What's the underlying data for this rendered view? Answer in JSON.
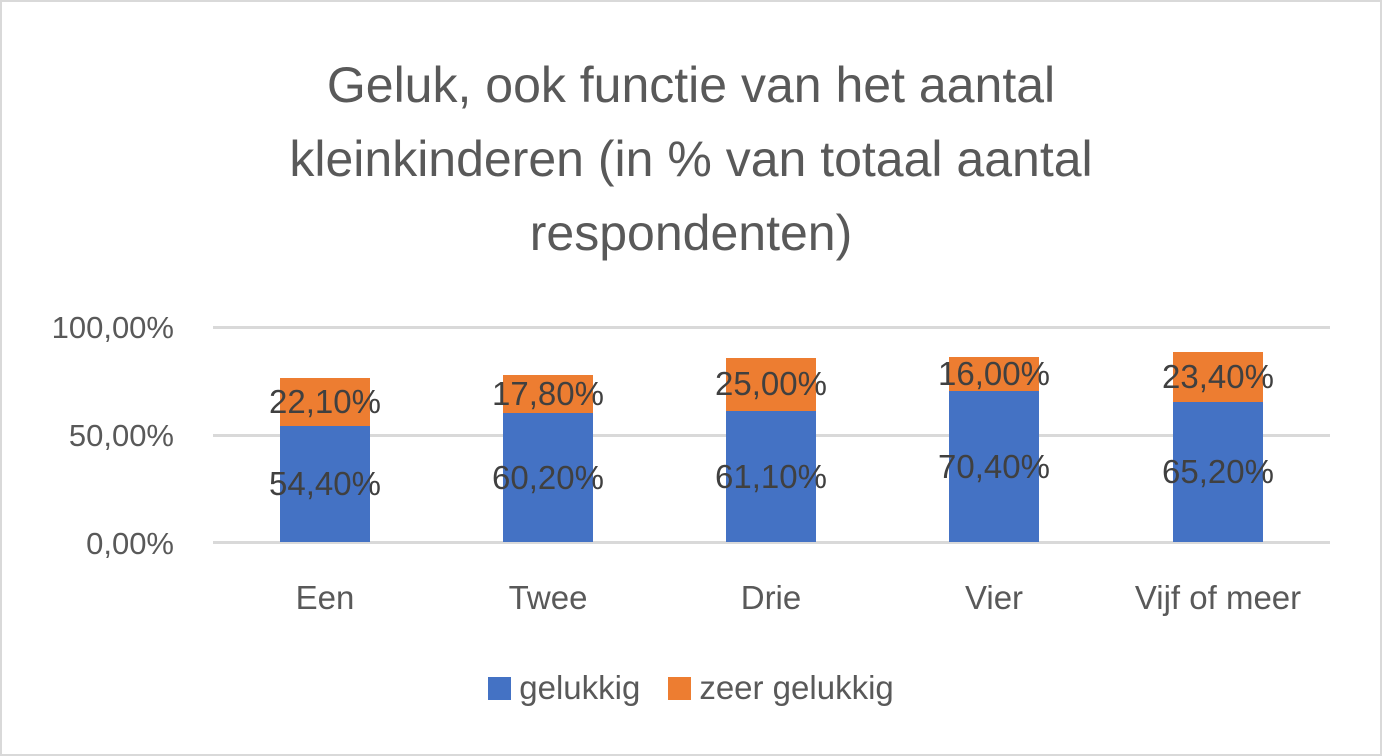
{
  "chart_data": {
    "type": "bar",
    "stacked": true,
    "title": "Geluk, ook functie van het aantal kleinkinderen (in % van totaal aantal respondenten)",
    "title_lines": [
      "Geluk, ook functie van het aantal",
      "kleinkinderen (in % van totaal aantal",
      "respondenten)"
    ],
    "xlabel": "",
    "ylabel": "",
    "ylim": [
      0,
      100
    ],
    "yticks": [
      "0,00%",
      "50,00%",
      "100,00%"
    ],
    "grid": true,
    "legend_position": "bottom",
    "categories": [
      "Een",
      "Twee",
      "Drie",
      "Vier",
      "Vijf of meer"
    ],
    "series": [
      {
        "name": "gelukkig",
        "color": "#4472c4",
        "values": [
          54.4,
          60.2,
          61.1,
          70.4,
          65.2
        ],
        "labels": [
          "54,40%",
          "60,20%",
          "61,10%",
          "70,40%",
          "65,20%"
        ]
      },
      {
        "name": "zeer gelukkig",
        "color": "#ed7d31",
        "values": [
          22.1,
          17.8,
          25.0,
          16.0,
          23.4
        ],
        "labels": [
          "22,10%",
          "17,80%",
          "25,00%",
          "16,00%",
          "23,40%"
        ]
      }
    ]
  }
}
